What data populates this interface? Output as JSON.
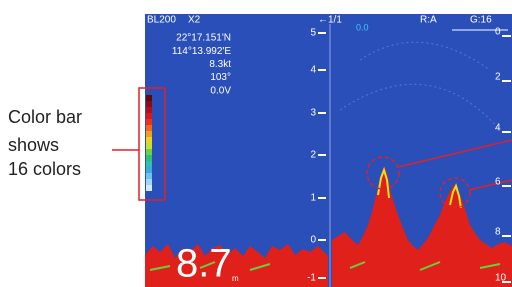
{
  "annotation": {
    "lines": [
      "Color bar",
      "shows",
      "16 colors"
    ]
  },
  "screen": {
    "header": {
      "model": "BL200",
      "zoom": "X2",
      "page": "1/1",
      "offset": "0.0",
      "range": "R:A",
      "gain": "G:16"
    },
    "info": [
      "22°17.151'N",
      "114°13.992'E",
      "8.3kt",
      "103°",
      "0.0V"
    ],
    "left_scale": [
      "5",
      "4",
      "3",
      "2",
      "1",
      "0",
      "-1"
    ],
    "right_scale": [
      "0",
      "2",
      "4",
      "6",
      "8",
      "10"
    ],
    "depth": {
      "value": "8.7",
      "unit": "m"
    }
  }
}
